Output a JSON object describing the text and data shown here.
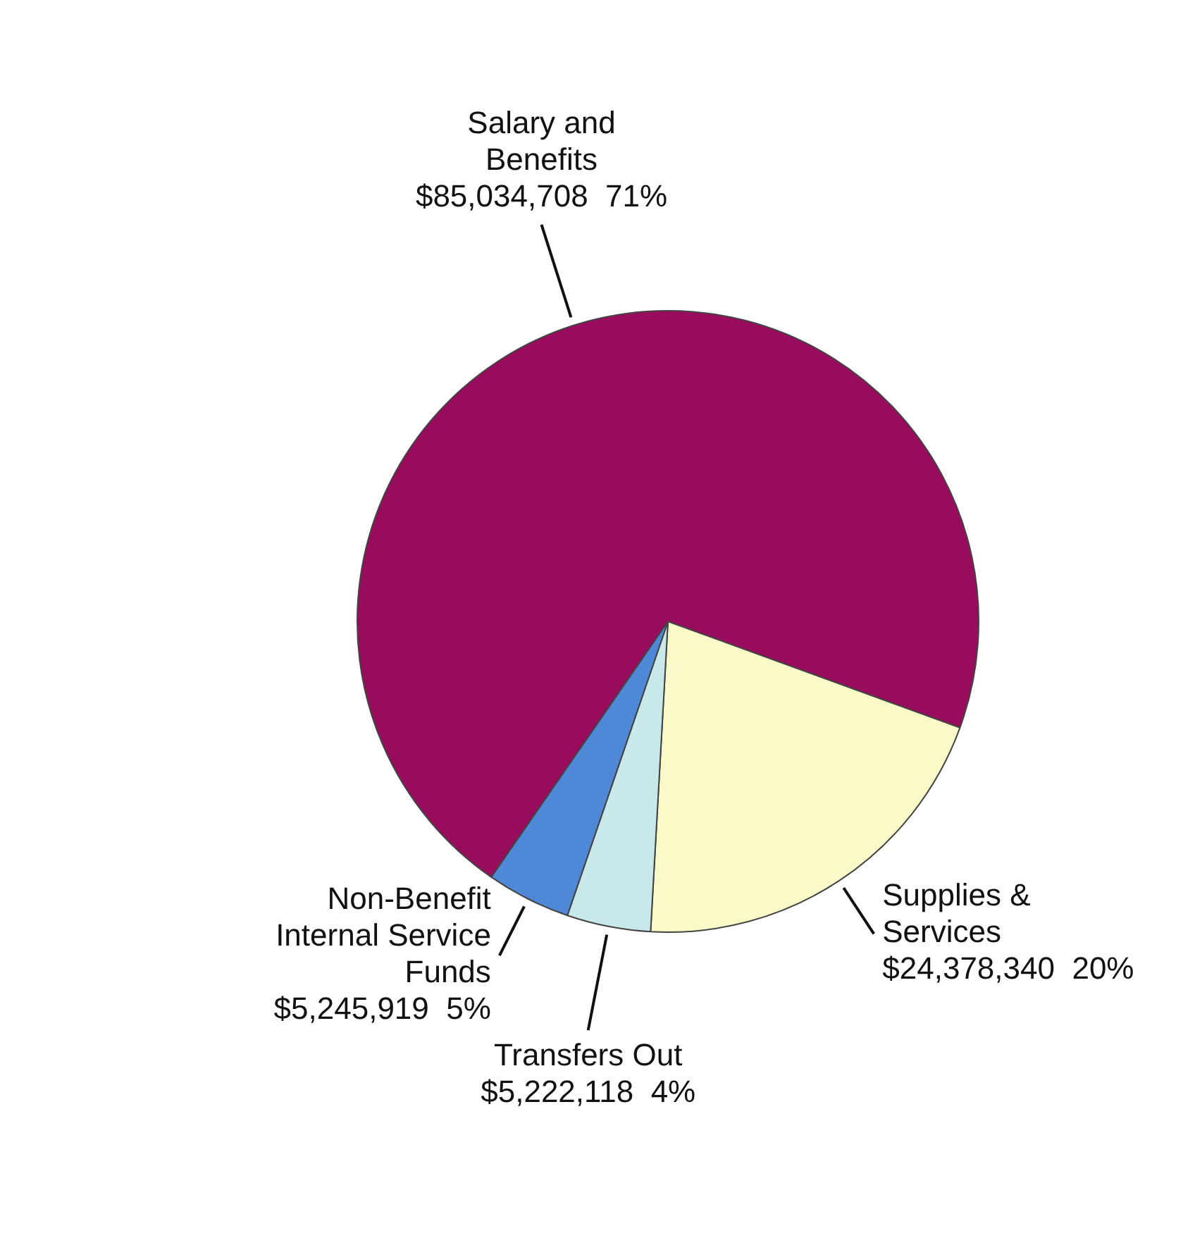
{
  "chart_data": {
    "type": "pie",
    "categories": [
      "Salary and Benefits",
      "Supplies & Services",
      "Transfers Out",
      "Non-Benefit Internal Service Funds"
    ],
    "values": [
      85034708,
      24378340,
      5222118,
      5245919
    ],
    "value_labels": [
      "$85,034,708  71%",
      "$24,378,340  20%",
      "$5,222,118  4%",
      "$5,245,919  5%"
    ],
    "colors": [
      "#990b5c",
      "#fafac8",
      "#c8e8ea",
      "#4f88d6"
    ],
    "legend": false
  }
}
